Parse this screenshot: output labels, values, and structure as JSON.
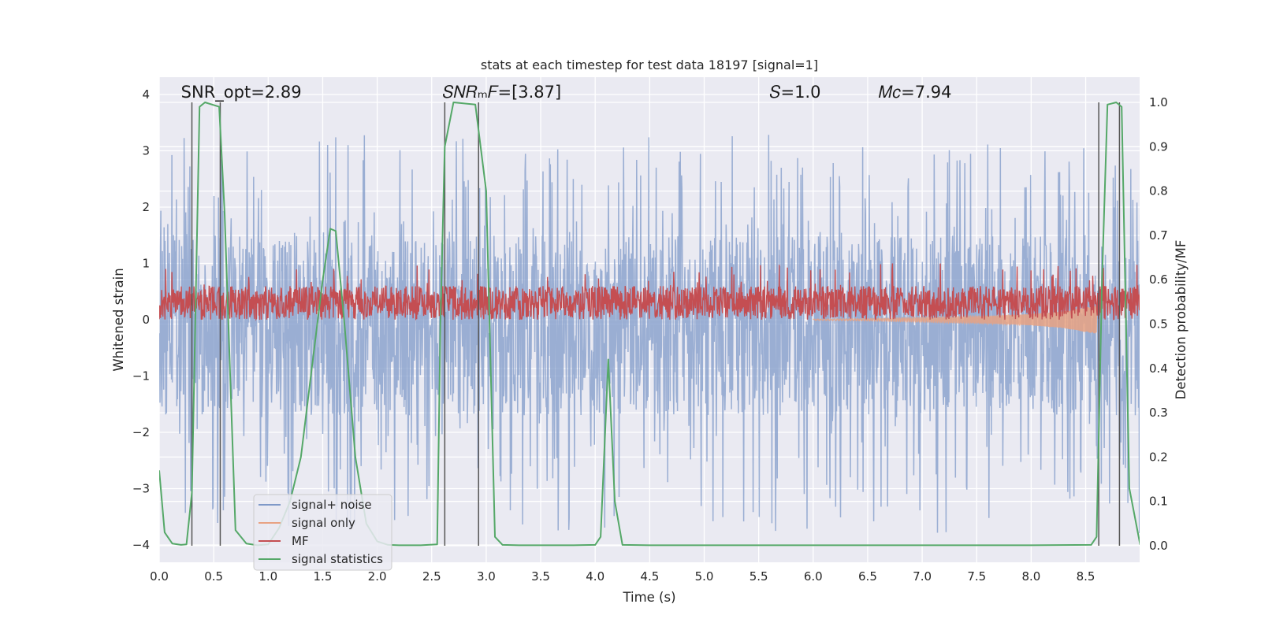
{
  "chart_data": {
    "type": "line",
    "title": "stats at each timestep for test data 18197 [signal=1]",
    "xlabel": "Time (s)",
    "ylabel": "Whitened strain",
    "y2label": "Detection probability/MF",
    "xlim": [
      0.0,
      9.0
    ],
    "ylim": [
      -4.3,
      4.2
    ],
    "y2lim": [
      -0.05,
      1.045
    ],
    "xticks": [
      0.0,
      0.5,
      1.0,
      1.5,
      2.0,
      2.5,
      3.0,
      3.5,
      4.0,
      4.5,
      5.0,
      5.5,
      6.0,
      6.5,
      7.0,
      7.5,
      8.0,
      8.5
    ],
    "xtick_labels": [
      "0.0",
      "0.5",
      "1.0",
      "1.5",
      "2.0",
      "2.5",
      "3.0",
      "3.5",
      "4.0",
      "4.5",
      "5.0",
      "5.5",
      "6.0",
      "6.5",
      "7.0",
      "7.5",
      "8.0",
      "8.5"
    ],
    "yticks": [
      4,
      3,
      2,
      1,
      0,
      -1,
      -2,
      -3,
      -4
    ],
    "ytick_labels": [
      "4",
      "3",
      "2",
      "1",
      "0",
      "−1",
      "−2",
      "−3",
      "−4"
    ],
    "y2ticks": [
      1.0,
      0.9,
      0.8,
      0.7,
      0.6,
      0.5,
      0.4,
      0.3,
      0.2,
      0.1,
      0.0
    ],
    "y2tick_labels": [
      "1.0",
      "0.9",
      "0.8",
      "0.7",
      "0.6",
      "0.5",
      "0.4",
      "0.3",
      "0.2",
      "0.1",
      "0.0"
    ],
    "grid": true,
    "legend_position": "lower-left",
    "series": [
      {
        "name": "signal+ noise",
        "color": "#7f99c8",
        "axis": "left",
        "kind": "noise",
        "envelope_low": -1.7,
        "envelope_high": 1.5,
        "spike_low": -3.8,
        "spike_high": 3.3
      },
      {
        "name": "signal only",
        "color": "#e8a283",
        "axis": "left",
        "kind": "chirp",
        "x": [
          6.0,
          6.5,
          7.0,
          7.5,
          8.0,
          8.3,
          8.5,
          8.6
        ],
        "amplitude": [
          0.01,
          0.02,
          0.04,
          0.06,
          0.1,
          0.15,
          0.22,
          0.25
        ]
      },
      {
        "name": "MF",
        "color": "#c44e52",
        "axis": "left",
        "kind": "band",
        "center": 0.3,
        "spread": 0.3,
        "spike_high": 1.0
      },
      {
        "name": "signal statistics",
        "color": "#55a868",
        "axis": "right",
        "x": [
          0.0,
          0.05,
          0.12,
          0.2,
          0.25,
          0.3,
          0.37,
          0.42,
          0.55,
          0.6,
          0.7,
          0.8,
          0.9,
          1.0,
          1.1,
          1.2,
          1.3,
          1.4,
          1.5,
          1.57,
          1.62,
          1.7,
          1.8,
          1.9,
          2.0,
          2.1,
          2.2,
          2.3,
          2.4,
          2.55,
          2.58,
          2.62,
          2.7,
          2.9,
          3.0,
          3.08,
          3.15,
          3.3,
          3.6,
          3.8,
          4.0,
          4.05,
          4.12,
          4.18,
          4.25,
          4.5,
          5.0,
          6.0,
          7.0,
          8.0,
          8.55,
          8.6,
          8.65,
          8.7,
          8.78,
          8.83,
          8.9,
          9.0
        ],
        "y": [
          0.17,
          0.03,
          0.005,
          0.002,
          0.003,
          0.12,
          0.99,
          1.0,
          0.99,
          0.75,
          0.035,
          0.005,
          0.001,
          0.003,
          0.04,
          0.1,
          0.2,
          0.4,
          0.6,
          0.715,
          0.71,
          0.5,
          0.2,
          0.05,
          0.01,
          0.002,
          0.001,
          0.001,
          0.001,
          0.003,
          0.5,
          0.9,
          1.0,
          0.995,
          0.8,
          0.02,
          0.002,
          0.001,
          0.001,
          0.001,
          0.002,
          0.02,
          0.42,
          0.1,
          0.002,
          0.001,
          0.001,
          0.001,
          0.001,
          0.001,
          0.002,
          0.02,
          0.6,
          0.995,
          1.0,
          0.99,
          0.13,
          0.002
        ]
      }
    ],
    "vlines": [
      0.3,
      0.56,
      2.62,
      2.93,
      8.62,
      8.81
    ],
    "annotations": [
      {
        "text": "SNR_opt=2.89",
        "x": 0.2
      },
      {
        "text": "𝑆𝑁𝑅ₘ𝐹=[3.87]",
        "x": 2.6
      },
      {
        "text": "𝑆=1.0",
        "x": 5.6
      },
      {
        "text": "𝑀𝑐=7.94",
        "x": 6.6
      }
    ]
  }
}
